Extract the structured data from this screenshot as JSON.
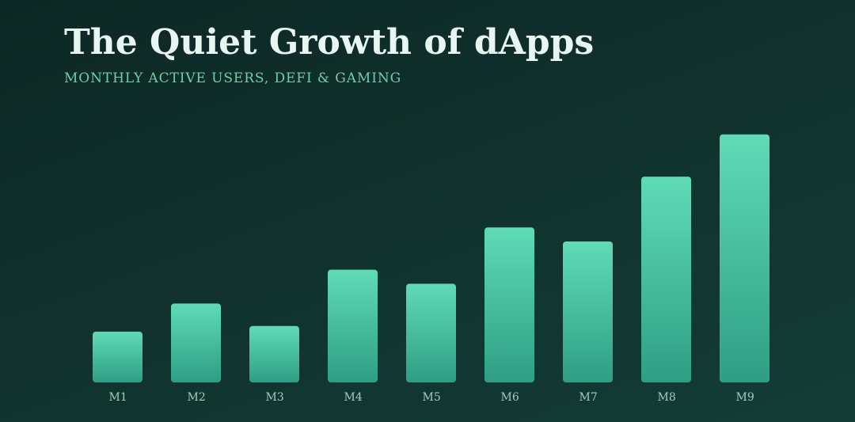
{
  "chart_data": {
    "type": "bar",
    "title": "The Quiet Growth of dApps",
    "subtitle": "MONTHLY ACTIVE USERS, DEFI & GAMING",
    "xlabel": "",
    "ylabel": "",
    "categories": [
      "M1",
      "M2",
      "M3",
      "M4",
      "M5",
      "M6",
      "M7",
      "M8",
      "M9"
    ],
    "values": [
      18,
      28,
      20,
      40,
      35,
      55,
      50,
      73,
      88
    ],
    "ylim": [
      0,
      100
    ],
    "grid": false,
    "legend": "none",
    "colors": {
      "bar_top": "#5fdbb6",
      "bar_bottom": "#2f9e84",
      "title": "#e7f6f1",
      "subtitle": "#6fcfb0",
      "tick_label": "#9ccfc0",
      "background": "#11332e"
    }
  }
}
